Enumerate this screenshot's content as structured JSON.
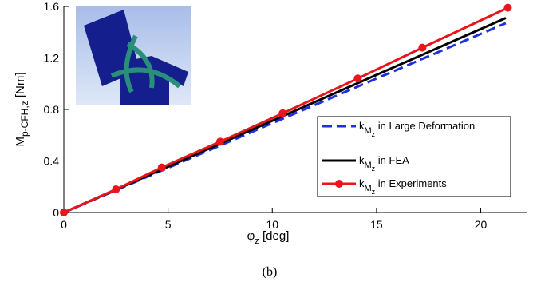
{
  "chart_data": {
    "type": "line",
    "caption": "(b)",
    "xlabel": {
      "base": "φ",
      "sub": "z",
      "rest": " [deg]"
    },
    "ylabel": {
      "base": "M",
      "sub": "p-CFH,z",
      "rest": " [Nm]"
    },
    "xlim": [
      0,
      22.2
    ],
    "xticks": [
      0,
      5,
      10,
      15,
      20
    ],
    "ylim": [
      0,
      1.6
    ],
    "yticks": [
      0,
      0.4,
      0.8,
      1.2,
      1.6
    ],
    "grid": false,
    "legend": "lower right",
    "series": [
      {
        "name": {
          "base": "k",
          "sub": "M",
          "subsub": "z",
          "rest": " in Large Deformation"
        },
        "color": "#1f2fe0",
        "linestyle": "dashed",
        "marker": null,
        "x": [
          0,
          21.2
        ],
        "values": [
          0,
          1.47
        ]
      },
      {
        "name": {
          "base": "k",
          "sub": "M",
          "subsub": "z",
          "rest": " in FEA"
        },
        "color": "#000000",
        "linestyle": "solid",
        "marker": null,
        "x": [
          0,
          21.2
        ],
        "values": [
          0,
          1.51
        ]
      },
      {
        "name": {
          "base": "k",
          "sub": "M",
          "subsub": "z",
          "rest": " in Experiments"
        },
        "color": "#e8161c",
        "linestyle": "solid",
        "marker": "o",
        "x": [
          0,
          2.5,
          4.7,
          7.5,
          10.5,
          14.1,
          17.2,
          21.3
        ],
        "values": [
          0,
          0.18,
          0.35,
          0.55,
          0.77,
          1.04,
          1.28,
          1.59
        ]
      }
    ]
  }
}
